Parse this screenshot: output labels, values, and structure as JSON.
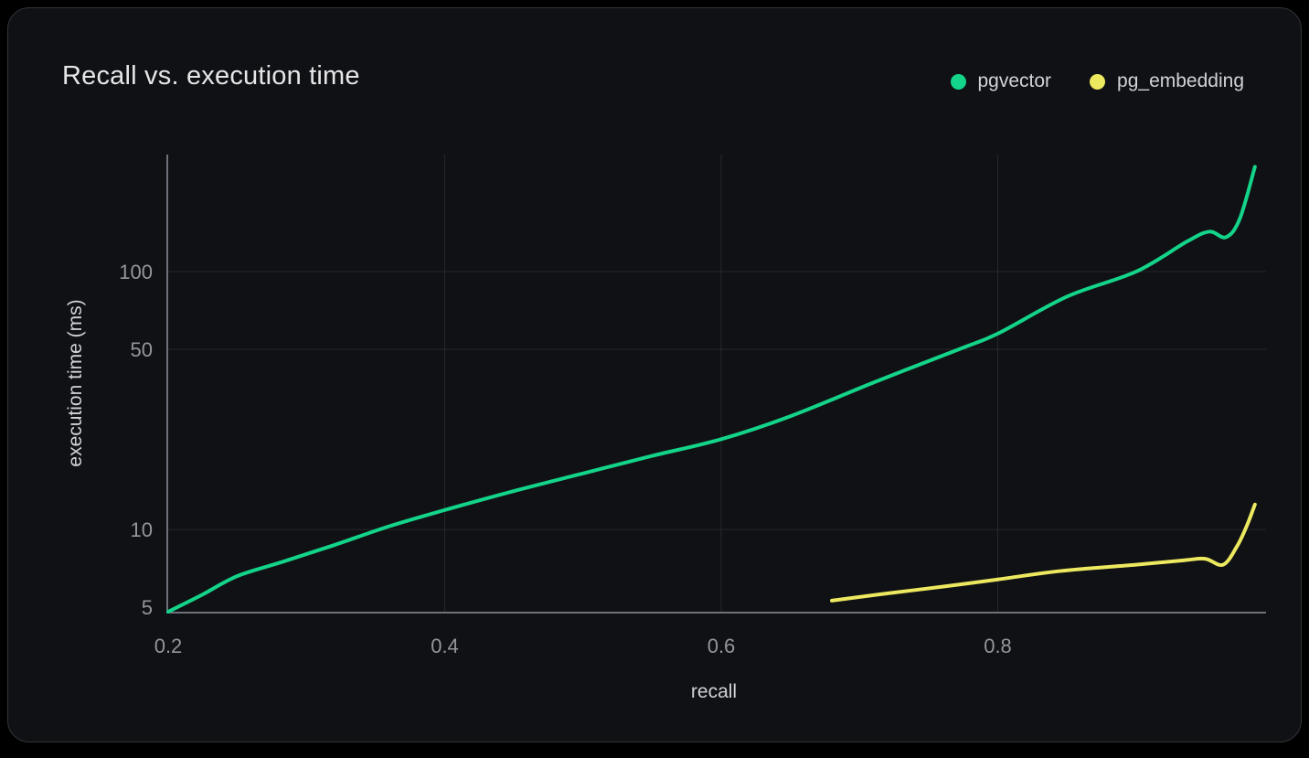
{
  "chart_data": {
    "type": "line",
    "title": "Recall vs. execution time",
    "xlabel": "recall",
    "ylabel": "execution time (ms)",
    "x_scale": "linear",
    "y_scale": "log",
    "x_ticks": [
      0.2,
      0.4,
      0.6,
      0.8
    ],
    "x_tick_labels": [
      "0.2",
      "0.4",
      "0.6",
      "0.8"
    ],
    "y_ticks": [
      5,
      10,
      50,
      100
    ],
    "y_tick_labels": [
      "5",
      "10",
      "50",
      "100"
    ],
    "x_range": [
      0.2,
      0.995
    ],
    "y_range": [
      4.8,
      260
    ],
    "grid": true,
    "legend_position": "top-right",
    "colors": {
      "grid": "#26272b",
      "axis": "#6e717a",
      "tick": "#94969c",
      "card_background": "#101114",
      "page_background": "#000000"
    },
    "series": [
      {
        "name": "pgvector",
        "color": "#13d489",
        "points": [
          [
            0.2,
            4.8
          ],
          [
            0.225,
            5.6
          ],
          [
            0.25,
            6.6
          ],
          [
            0.283,
            7.5
          ],
          [
            0.32,
            8.7
          ],
          [
            0.36,
            10.3
          ],
          [
            0.4,
            11.9
          ],
          [
            0.45,
            14.1
          ],
          [
            0.5,
            16.5
          ],
          [
            0.55,
            19.3
          ],
          [
            0.6,
            22.4
          ],
          [
            0.65,
            27.5
          ],
          [
            0.712,
            37.5
          ],
          [
            0.772,
            50.0
          ],
          [
            0.8,
            57.5
          ],
          [
            0.85,
            80.0
          ],
          [
            0.9,
            100.0
          ],
          [
            0.937,
            131.0
          ],
          [
            0.953,
            143.0
          ],
          [
            0.965,
            136.0
          ],
          [
            0.975,
            160.0
          ],
          [
            0.986,
            255.0
          ]
        ]
      },
      {
        "name": "pg_embedding",
        "color": "#ece85f",
        "points": [
          [
            0.68,
            5.3
          ],
          [
            0.72,
            5.65
          ],
          [
            0.76,
            6.0
          ],
          [
            0.8,
            6.4
          ],
          [
            0.845,
            6.9
          ],
          [
            0.9,
            7.3
          ],
          [
            0.935,
            7.6
          ],
          [
            0.95,
            7.7
          ],
          [
            0.963,
            7.3
          ],
          [
            0.973,
            8.6
          ],
          [
            0.98,
            10.3
          ],
          [
            0.986,
            12.5
          ]
        ]
      }
    ]
  }
}
